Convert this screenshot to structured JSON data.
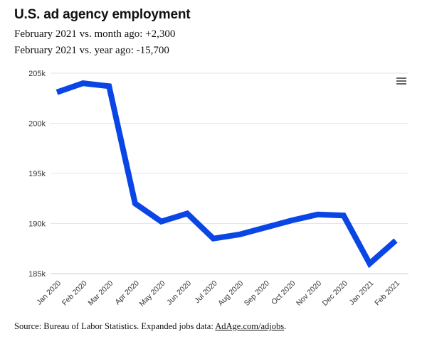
{
  "title": "U.S. ad agency employment",
  "subtitle_lines": [
    "February 2021 vs. month ago: +2,300",
    "February 2021 vs. year ago: -15,700"
  ],
  "footer": {
    "source_text": "Source: Bureau of Labor Statistics. Expanded jobs data: ",
    "link_text": "AdAge.com/adjobs",
    "end_text": "."
  },
  "menu_icon": "hamburger-menu-icon",
  "colors": {
    "line": "#0a46e6",
    "grid": "#e6e6e6",
    "text": "#111111"
  },
  "chart_data": {
    "type": "line",
    "categories": [
      "Jan 2020",
      "Feb 2020",
      "Mar 2020",
      "Apr 2020",
      "May 2020",
      "Jun 2020",
      "Jul 2020",
      "Aug 2020",
      "Sep 2020",
      "Oct 2020",
      "Nov 2020",
      "Dec 2020",
      "Jan 2021",
      "Feb 2021"
    ],
    "series": [
      {
        "values": [
          203100,
          204000,
          203700,
          192000,
          190200,
          191000,
          188500,
          188900,
          189600,
          190300,
          190900,
          190800,
          186000,
          188300
        ]
      }
    ],
    "yticks": [
      185000,
      190000,
      195000,
      200000,
      205000
    ],
    "ytick_labels": [
      "185k",
      "190k",
      "195k",
      "200k",
      "205k"
    ],
    "ylim": [
      185000,
      205000
    ],
    "grid": true,
    "xlabel": "",
    "ylabel": ""
  }
}
